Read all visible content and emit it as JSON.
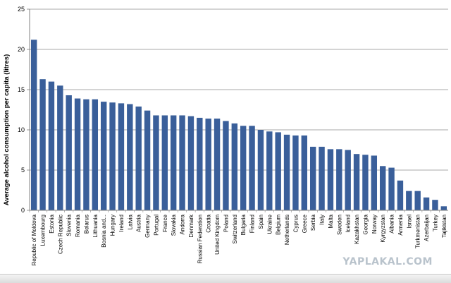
{
  "chart_data": {
    "type": "bar",
    "title": "",
    "xlabel": "",
    "ylabel": "Average alcohol consumption per capita (litres)",
    "ylim": [
      0,
      25
    ],
    "yticks": [
      0,
      5,
      10,
      15,
      20,
      25
    ],
    "grid": "horizontal",
    "bar_color": "#3a5f9a",
    "categories": [
      "Republic of Moldova",
      "Luxembourg",
      "Estonia",
      "Czech Republic",
      "Slovenia",
      "Romania",
      "Belarus",
      "Lithuania",
      "Bosnia and...",
      "Hungary",
      "Ireland",
      "Latvia",
      "Austria",
      "Germany",
      "Portugal",
      "France",
      "Slovakia",
      "Andorra",
      "Denmark",
      "Russian Federation",
      "Croatia",
      "United Kingdom",
      "Poland",
      "Switzerland",
      "Bulgaria",
      "Finland",
      "Spain",
      "Ukraine",
      "Belgium",
      "Netherlands",
      "Cyprus",
      "Greece",
      "Serbia",
      "Italy",
      "Malta",
      "Sweden",
      "Iceland",
      "Kazakhstan",
      "Georgia",
      "Norway",
      "Kyrgyzstan",
      "Albania",
      "Armenia",
      "Israel",
      "Turkmenistan",
      "Azerbaijan",
      "Turkey",
      "Tajikistan"
    ],
    "values": [
      21.2,
      16.3,
      16.0,
      15.5,
      14.3,
      13.9,
      13.8,
      13.8,
      13.5,
      13.4,
      13.3,
      13.2,
      12.9,
      12.4,
      11.8,
      11.8,
      11.8,
      11.8,
      11.7,
      11.5,
      11.4,
      11.4,
      11.1,
      10.8,
      10.5,
      10.5,
      10.0,
      9.8,
      9.7,
      9.4,
      9.3,
      9.3,
      7.9,
      7.9,
      7.6,
      7.6,
      7.5,
      7.0,
      6.9,
      6.8,
      5.5,
      5.3,
      3.7,
      2.4,
      2.4,
      1.6,
      1.3,
      0.5
    ]
  },
  "watermark": "YAPLAKAL.COM"
}
